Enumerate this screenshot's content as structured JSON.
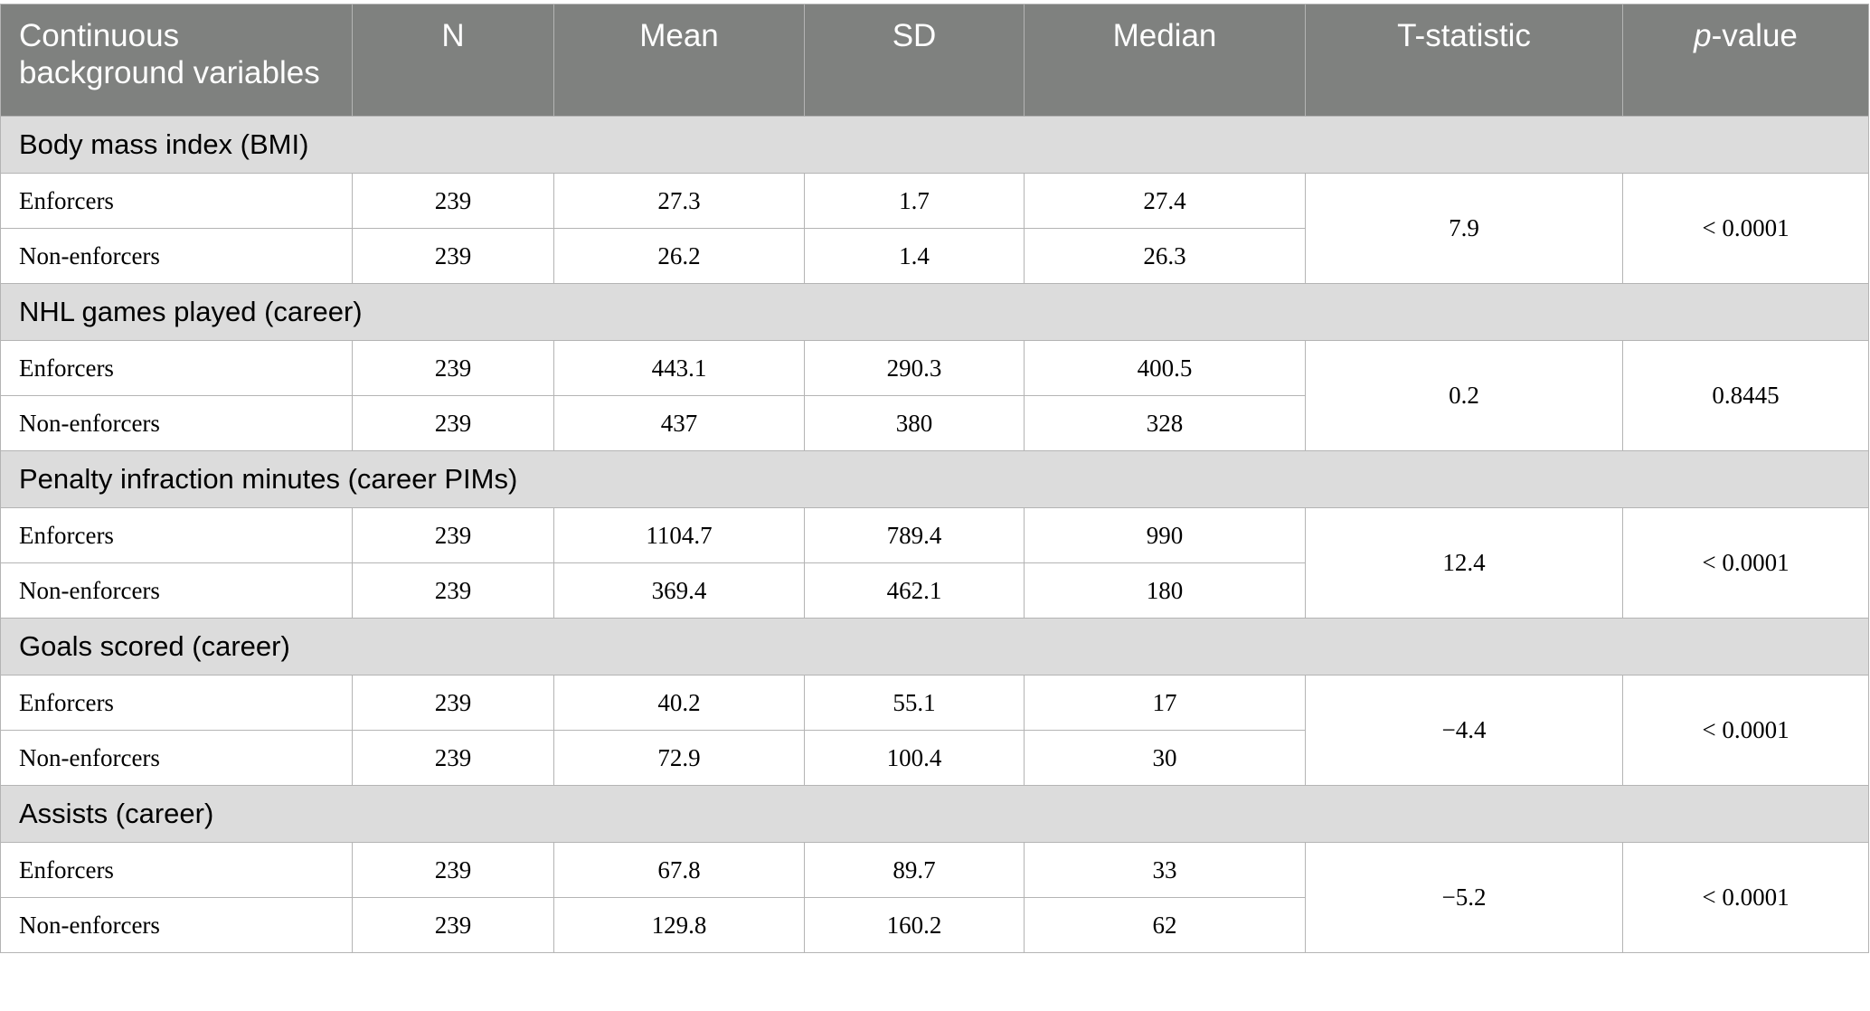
{
  "table": {
    "columns": [
      "Continuous background variables",
      "N",
      "Mean",
      "SD",
      "Median",
      "T-statistic",
      {
        "italic": "p",
        "rest": "-value"
      }
    ],
    "groups": [
      {
        "title": "Body mass index (BMI)",
        "rows": [
          [
            "Enforcers",
            "239",
            "27.3",
            "1.7",
            "27.4"
          ],
          [
            "Non-enforcers",
            "239",
            "26.2",
            "1.4",
            "26.3"
          ]
        ],
        "t": "7.9",
        "p": "< 0.0001"
      },
      {
        "title": "NHL games played (career)",
        "rows": [
          [
            "Enforcers",
            "239",
            "443.1",
            "290.3",
            "400.5"
          ],
          [
            "Non-enforcers",
            "239",
            "437",
            "380",
            "328"
          ]
        ],
        "t": "0.2",
        "p": "0.8445"
      },
      {
        "title": "Penalty infraction minutes (career PIMs)",
        "rows": [
          [
            "Enforcers",
            "239",
            "1104.7",
            "789.4",
            "990"
          ],
          [
            "Non-enforcers",
            "239",
            "369.4",
            "462.1",
            "180"
          ]
        ],
        "t": "12.4",
        "p": "< 0.0001"
      },
      {
        "title": "Goals scored (career)",
        "rows": [
          [
            "Enforcers",
            "239",
            "40.2",
            "55.1",
            "17"
          ],
          [
            "Non-enforcers",
            "239",
            "72.9",
            "100.4",
            "30"
          ]
        ],
        "t": "−4.4",
        "p": "< 0.0001"
      },
      {
        "title": "Assists (career)",
        "rows": [
          [
            "Enforcers",
            "239",
            "67.8",
            "89.7",
            "33"
          ],
          [
            "Non-enforcers",
            "239",
            "129.8",
            "160.2",
            "62"
          ]
        ],
        "t": "−5.2",
        "p": "< 0.0001"
      }
    ]
  }
}
